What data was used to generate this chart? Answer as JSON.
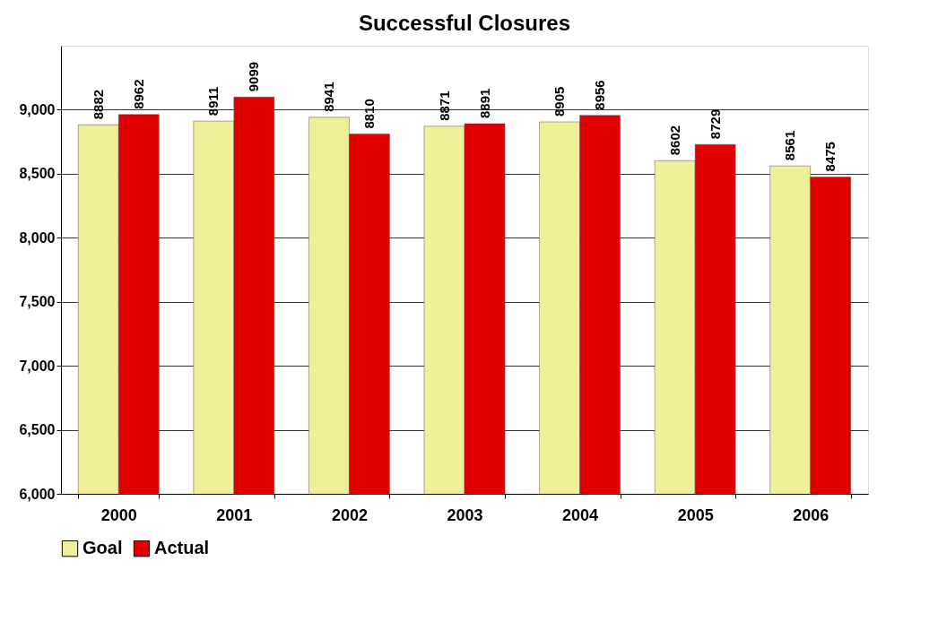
{
  "chart_data": {
    "type": "bar",
    "title": "Successful Closures",
    "categories": [
      "2000",
      "2001",
      "2002",
      "2003",
      "2004",
      "2005",
      "2006"
    ],
    "series": [
      {
        "name": "Goal",
        "color": "#f0f09a",
        "values": [
          8882,
          8911,
          8941,
          8871,
          8905,
          8602,
          8561
        ]
      },
      {
        "name": "Actual",
        "color": "#e00000",
        "values": [
          8962,
          9099,
          8810,
          8891,
          8956,
          8729,
          8475
        ]
      }
    ],
    "ylim": [
      6000,
      9500
    ],
    "yticks": [
      {
        "value": 6000,
        "label": "6,000"
      },
      {
        "value": 6500,
        "label": "6,500"
      },
      {
        "value": 7000,
        "label": "7,000"
      },
      {
        "value": 7500,
        "label": "7,500"
      },
      {
        "value": 8000,
        "label": "8,000"
      },
      {
        "value": 8500,
        "label": "8,500"
      },
      {
        "value": 9000,
        "label": "9,000"
      }
    ],
    "grid": "y",
    "legend": "bottom",
    "data_labels": true
  }
}
